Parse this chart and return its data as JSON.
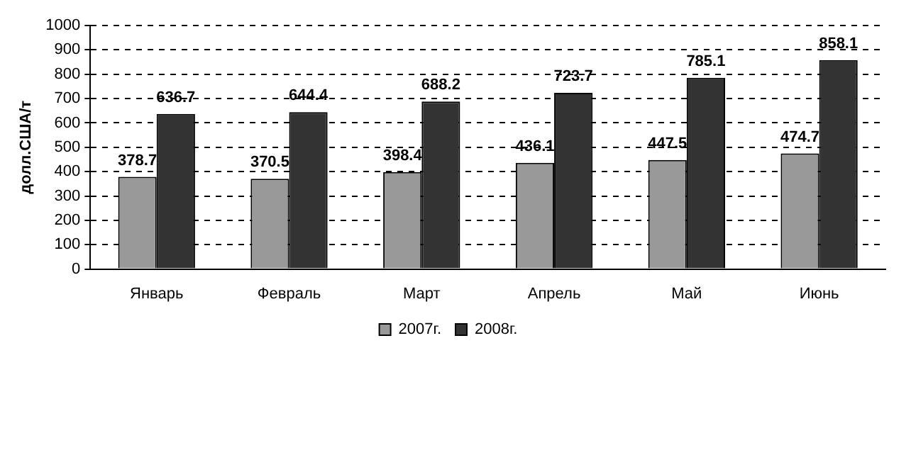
{
  "chart_data": {
    "type": "bar",
    "ylabel": "долл.США/т",
    "categories": [
      "Январь",
      "Февраль",
      "Март",
      "Апрель",
      "Май",
      "Июнь"
    ],
    "series": [
      {
        "name": "2007г.",
        "color": "#999999",
        "values": [
          378.7,
          370.5,
          398.4,
          436.1,
          447.5,
          474.7
        ]
      },
      {
        "name": "2008г.",
        "color": "#333333",
        "values": [
          636.7,
          644.4,
          688.2,
          723.7,
          785.1,
          858.1
        ]
      }
    ],
    "ylim": [
      0,
      1000
    ],
    "yticks": [
      0,
      100,
      200,
      300,
      400,
      500,
      600,
      700,
      800,
      900,
      1000
    ],
    "grid": "y",
    "legend": "bottom",
    "data_labels": true
  }
}
